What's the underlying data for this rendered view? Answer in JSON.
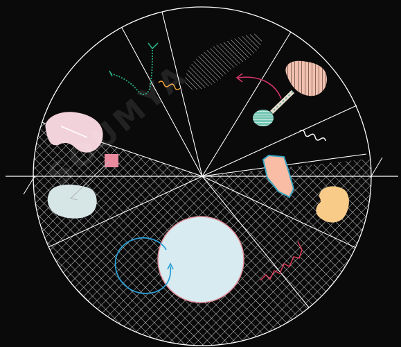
{
  "colors": {
    "background": "#0a0a0a",
    "lines": "#ffffff",
    "pink_blob": "#f2d2da",
    "pink_square": "#e98a9f",
    "pale_blob": "#d6e6e7",
    "big_circle": "#d7ebf0",
    "big_circle_stroke": "#e08a96",
    "salmon_shape": "#f9bca4",
    "salmon_stroke": "#3aa7c4",
    "peach_blob": "#f8cc88",
    "hatched_blob": "#f3c1b0",
    "hatched_stroke": "#3c2a24",
    "teal_oval": "#76c7b4",
    "green_dotted": "#27b07d",
    "orange_squiggle": "#f2a33a",
    "magenta_arrow": "#d6366a",
    "blue_arc": "#2a9fd6",
    "red_zigzag": "#df3d59"
  },
  "watermark": {
    "text": "SOUMYA"
  }
}
